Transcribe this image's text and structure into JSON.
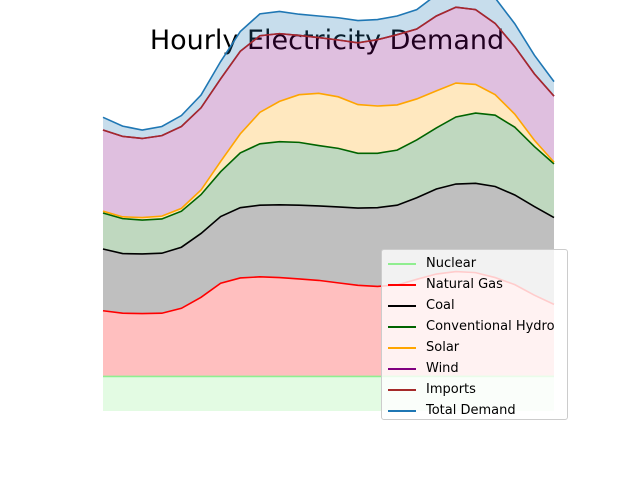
{
  "chart_data": {
    "type": "area",
    "title": "Hourly Electricity Demand",
    "xlabel": "",
    "ylabel": "",
    "axes_visible": false,
    "grid": false,
    "legend_position": "lower-right",
    "x": [
      0,
      1,
      2,
      3,
      4,
      5,
      6,
      7,
      8,
      9,
      10,
      11,
      12,
      13,
      14,
      15,
      16,
      17,
      18,
      19,
      20,
      21,
      22,
      23
    ],
    "ylim": [
      0,
      100
    ],
    "series": [
      {
        "name": "Nuclear",
        "color": "#90ee90",
        "values": [
          9.8,
          9.8,
          9.8,
          9.8,
          9.8,
          9.8,
          9.8,
          9.8,
          9.8,
          9.8,
          9.8,
          9.8,
          9.8,
          9.8,
          9.8,
          9.8,
          9.8,
          9.8,
          9.8,
          9.8,
          9.8,
          9.8,
          9.8,
          9.8
        ]
      },
      {
        "name": "Natural Gas",
        "color": "#ff0000",
        "values": [
          18.6,
          17.9,
          17.8,
          17.9,
          19.3,
          22.4,
          26.4,
          27.9,
          28.2,
          28.0,
          27.6,
          27.2,
          26.5,
          25.8,
          25.5,
          25.9,
          27.5,
          29.0,
          29.7,
          29.4,
          28.0,
          26.0,
          23.0,
          20.4
        ]
      },
      {
        "name": "Coal",
        "color": "#000000",
        "values": [
          17.5,
          16.9,
          16.9,
          17.0,
          17.3,
          18.1,
          18.9,
          19.9,
          20.3,
          20.6,
          20.9,
          21.1,
          21.5,
          21.9,
          22.3,
          22.6,
          23.1,
          24.1,
          24.8,
          25.3,
          25.8,
          25.4,
          25.1,
          24.6
        ]
      },
      {
        "name": "Conventional Hydro",
        "color": "#006400",
        "values": [
          10.2,
          9.9,
          9.6,
          9.7,
          10.2,
          11.0,
          12.7,
          15.5,
          17.4,
          17.9,
          17.8,
          17.1,
          16.6,
          15.5,
          15.4,
          15.6,
          16.4,
          17.3,
          19.0,
          19.9,
          20.2,
          19.2,
          17.0,
          15.2
        ]
      },
      {
        "name": "Solar",
        "color": "#ffa500",
        "values": [
          0.5,
          0.5,
          0.7,
          0.8,
          0.8,
          1.3,
          2.9,
          5.4,
          8.9,
          11.4,
          13.5,
          14.8,
          14.6,
          13.8,
          13.4,
          12.8,
          11.6,
          10.5,
          9.6,
          8.1,
          5.8,
          3.7,
          1.8,
          0.5
        ]
      },
      {
        "name": "Wind",
        "color": "#800080",
        "values": [
          23.0,
          22.8,
          22.4,
          22.8,
          23.2,
          23.3,
          23.4,
          23.4,
          21.7,
          19.2,
          16.8,
          15.8,
          16.1,
          17.5,
          18.8,
          19.9,
          19.8,
          21.2,
          21.5,
          21.2,
          20.2,
          19.1,
          18.8,
          18.7
        ]
      },
      {
        "name": "Imports",
        "color": "#a52a2a",
        "values": [
          0,
          0,
          0,
          0,
          0,
          0,
          0,
          0,
          0,
          0,
          0,
          0,
          0,
          0,
          0,
          0,
          0,
          0,
          0,
          0,
          0,
          0,
          0,
          0
        ]
      },
      {
        "name": "Total Demand",
        "color": "#1f77b4",
        "values": [
          3.6,
          2.9,
          2.4,
          2.6,
          3.1,
          3.6,
          4.9,
          5.6,
          6.2,
          6.3,
          6.0,
          6.1,
          6.3,
          6.3,
          5.7,
          5.3,
          5.5,
          6.0,
          6.7,
          7.2,
          7.2,
          6.5,
          5.3,
          4.1
        ]
      }
    ]
  }
}
